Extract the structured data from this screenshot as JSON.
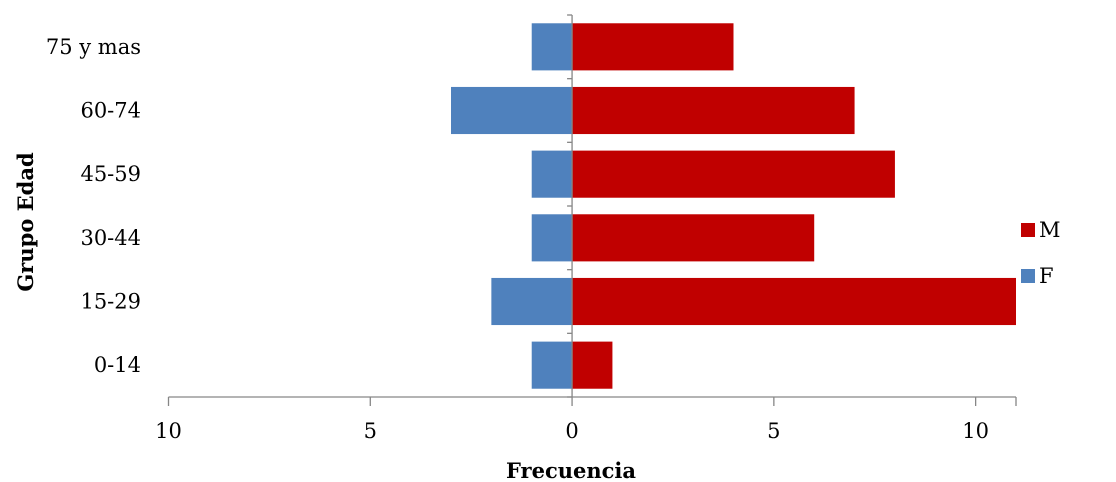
{
  "chart_data": {
    "type": "bar",
    "orientation": "horizontal",
    "stacked": "diverging",
    "title": "",
    "xlabel": "Frecuencia",
    "ylabel": "Grupo  Edad",
    "categories": [
      "0-14",
      "15-29",
      "30-44",
      "45-59",
      "60-74",
      "75 y mas"
    ],
    "series": [
      {
        "name": "M",
        "color": "#c00000",
        "values": [
          1,
          11,
          6,
          8,
          7,
          4
        ]
      },
      {
        "name": "F",
        "color": "#4f81bd",
        "values": [
          -1,
          -2,
          -1,
          -1,
          -3,
          -1
        ]
      }
    ],
    "xlim": [
      -10,
      11
    ],
    "xticks": [
      -10,
      -5,
      0,
      5,
      10
    ],
    "xtick_labels": [
      "10",
      "5",
      "0",
      "5",
      "10"
    ],
    "grid": false,
    "legend_position": "right"
  }
}
